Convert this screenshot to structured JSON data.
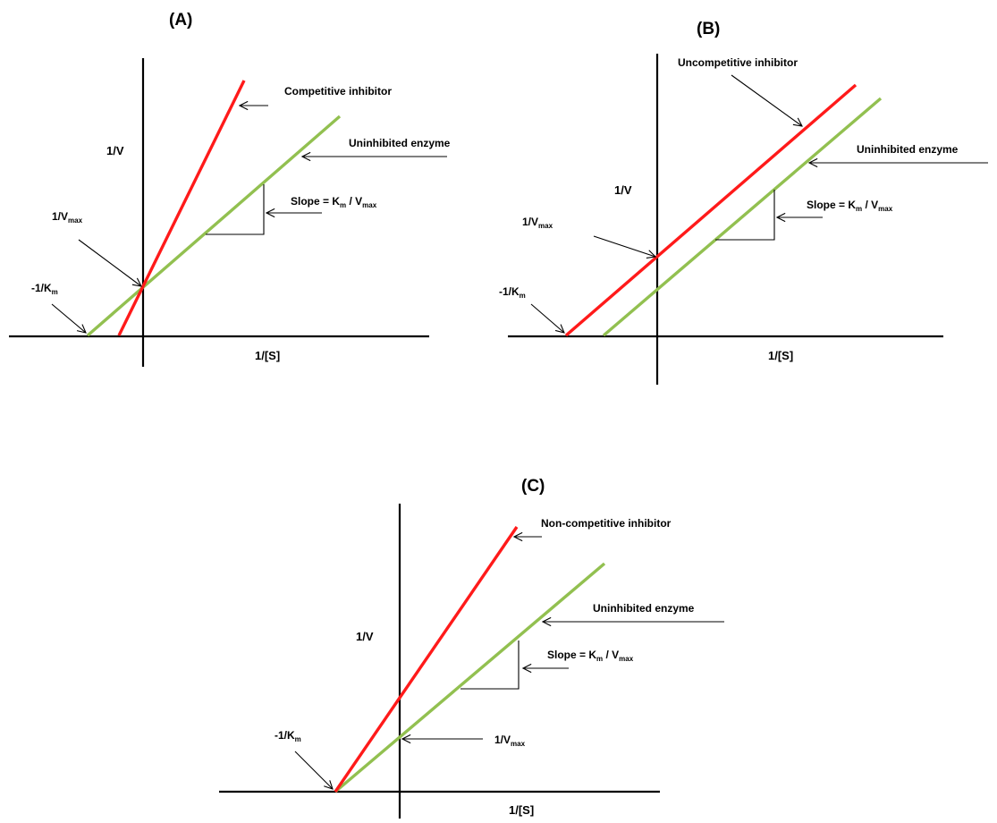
{
  "colors": {
    "inhibitor_line": "#ff1a1a",
    "uninhibited_line": "#92c050",
    "axes": "#000000",
    "background": "#ffffff"
  },
  "panels": [
    {
      "title": "(A)",
      "inhibitor_label": "Competitive inhibitor",
      "uninhibited_label": "Uninhibited enzyme",
      "slope": {
        "prefix": "Slope = K",
        "sub1": "m",
        "mid": " / V",
        "sub2": "max"
      },
      "y_axis_label": "1/V",
      "x_axis_label": "1/[S]",
      "vmax_label": {
        "main": "1/V",
        "sub": "max"
      },
      "km_label": {
        "main": "-1/K",
        "sub": "m"
      }
    },
    {
      "title": "(B)",
      "inhibitor_label": "Uncompetitive inhibitor",
      "uninhibited_label": "Uninhibited enzyme",
      "slope": {
        "prefix": "Slope = K",
        "sub1": "m",
        "mid": " / V",
        "sub2": "max"
      },
      "y_axis_label": "1/V",
      "x_axis_label": "1/[S]",
      "vmax_label": {
        "main": "1/V",
        "sub": "max"
      },
      "km_label": {
        "main": "-1/K",
        "sub": "m"
      }
    },
    {
      "title": "(C)",
      "inhibitor_label": "Non-competitive inhibitor",
      "uninhibited_label": "Uninhibited enzyme",
      "slope": {
        "prefix": "Slope = K",
        "sub1": "m",
        "mid": " / V",
        "sub2": "max"
      },
      "y_axis_label": "1/V",
      "x_axis_label": "1/[S]",
      "vmax_label": {
        "main": "1/V",
        "sub": "max"
      },
      "km_label": {
        "main": "-1/K",
        "sub": "m"
      }
    }
  ]
}
